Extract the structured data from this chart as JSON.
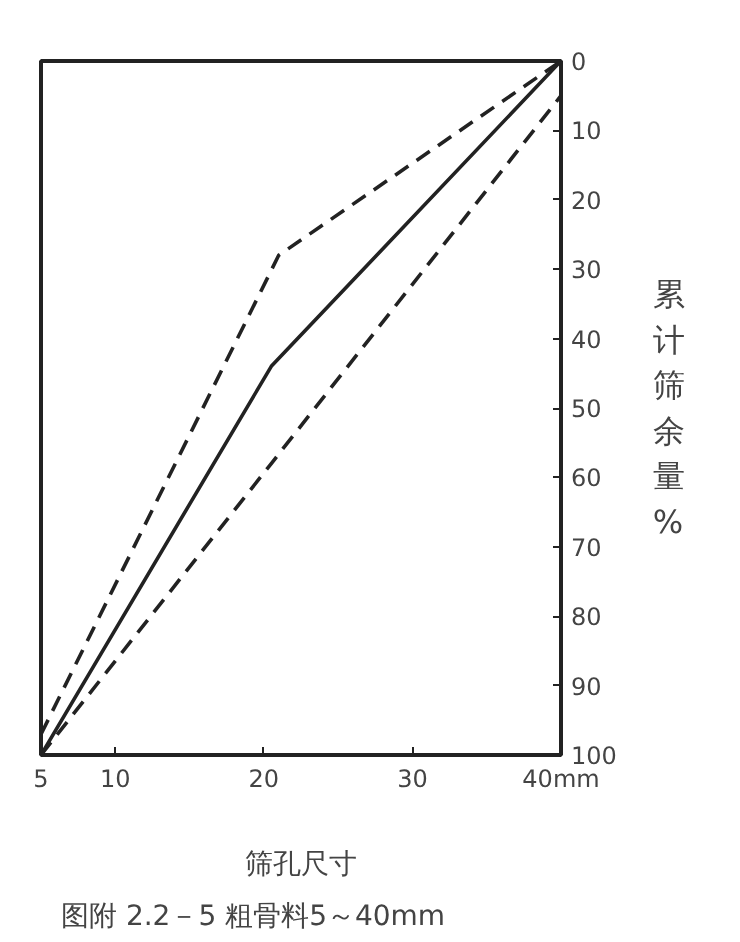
{
  "chart_data": {
    "type": "line",
    "title": "图附 2.2－5 粗骨料5～40mm",
    "xlabel": "筛孔尺寸",
    "ylabel": "累计筛余量%",
    "xlim": [
      5,
      40
    ],
    "xticks": [
      5,
      10,
      20,
      {
        "value": 30,
        "label": "30"
      },
      {
        "value": 40,
        "label": "40mm"
      }
    ],
    "ylim": [
      100,
      0
    ],
    "yticks": [
      0,
      10,
      20,
      30,
      40,
      50,
      60,
      70,
      80,
      90,
      100
    ],
    "grid": false,
    "series": [
      {
        "color": "#222222",
        "x": [
          5,
          21,
          40
        ],
        "values": [
          97,
          28,
          0
        ],
        "line_style": "dashed"
      },
      {
        "color": "#222222",
        "x": [
          5,
          20.5,
          40
        ],
        "values": [
          100,
          44,
          0
        ],
        "line_style": "solid"
      },
      {
        "color": "#222222",
        "x": [
          5,
          20.5,
          40
        ],
        "values": [
          100,
          58,
          5
        ],
        "line_style": "dashed"
      }
    ]
  }
}
